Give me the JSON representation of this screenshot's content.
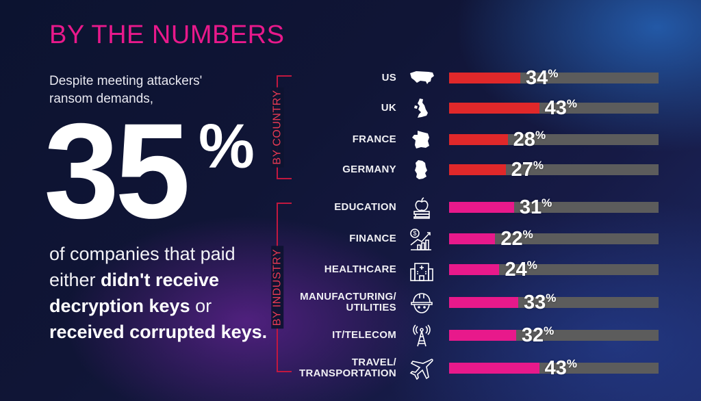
{
  "heading": "BY THE NUMBERS",
  "intro": "Despite meeting attackers' ransom demands,",
  "big_stat": {
    "value": "35",
    "unit": "%"
  },
  "summary": {
    "part1": "of companies that paid either ",
    "bold1": "didn't receive decryption keys",
    "part2": " or ",
    "bold2": "received corrupted keys."
  },
  "colors": {
    "country_bar": "#e0282a",
    "industry_bar": "#e8198b",
    "track": "#5c5c5c",
    "heading": "#e8198b"
  },
  "chart_data": {
    "type": "bar",
    "orientation": "horizontal",
    "xlim": [
      0,
      100
    ],
    "unit": "%",
    "groups": [
      {
        "label": "BY COUNTRY",
        "color": "#e0282a",
        "items": [
          {
            "label": "US",
            "value": 34,
            "icon": "us-map-icon"
          },
          {
            "label": "UK",
            "value": 43,
            "icon": "uk-map-icon"
          },
          {
            "label": "FRANCE",
            "value": 28,
            "icon": "france-map-icon"
          },
          {
            "label": "GERMANY",
            "value": 27,
            "icon": "germany-map-icon"
          }
        ]
      },
      {
        "label": "BY INDUSTRY",
        "color": "#e8198b",
        "items": [
          {
            "label": "EDUCATION",
            "value": 31,
            "icon": "apple-books-icon"
          },
          {
            "label": "FINANCE",
            "value": 22,
            "icon": "money-growth-icon"
          },
          {
            "label": "HEALTHCARE",
            "value": 24,
            "icon": "hospital-icon"
          },
          {
            "label": "MANUFACTURING/ UTILITIES",
            "value": 33,
            "icon": "hard-hat-icon"
          },
          {
            "label": "IT/TELECOM",
            "value": 32,
            "icon": "antenna-tower-icon"
          },
          {
            "label": "TRAVEL/ TRANSPORTATION",
            "value": 43,
            "icon": "airplane-icon"
          }
        ]
      }
    ]
  }
}
